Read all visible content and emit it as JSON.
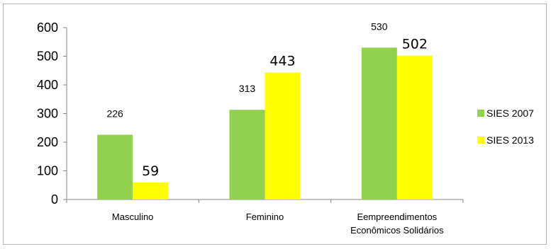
{
  "chart_data": {
    "type": "bar",
    "categories": [
      "Masculino",
      "Feminino",
      "Eempreendimentos Econômicos Solidários"
    ],
    "category_lines": [
      [
        "Masculino"
      ],
      [
        "Feminino"
      ],
      [
        "Eempreendimentos",
        "Econômicos Solidários"
      ]
    ],
    "series": [
      {
        "name": "SIES 2007",
        "values": [
          226,
          313,
          530
        ],
        "color": "#92d050"
      },
      {
        "name": "SIES 2013",
        "values": [
          59,
          443,
          502
        ],
        "color": "#ffff00"
      }
    ],
    "ylim": [
      0,
      600
    ],
    "yticks": [
      0,
      100,
      200,
      300,
      400,
      500,
      600
    ],
    "xlabel": "",
    "ylabel": "",
    "title": "",
    "grid": false,
    "legend_position": "right"
  }
}
